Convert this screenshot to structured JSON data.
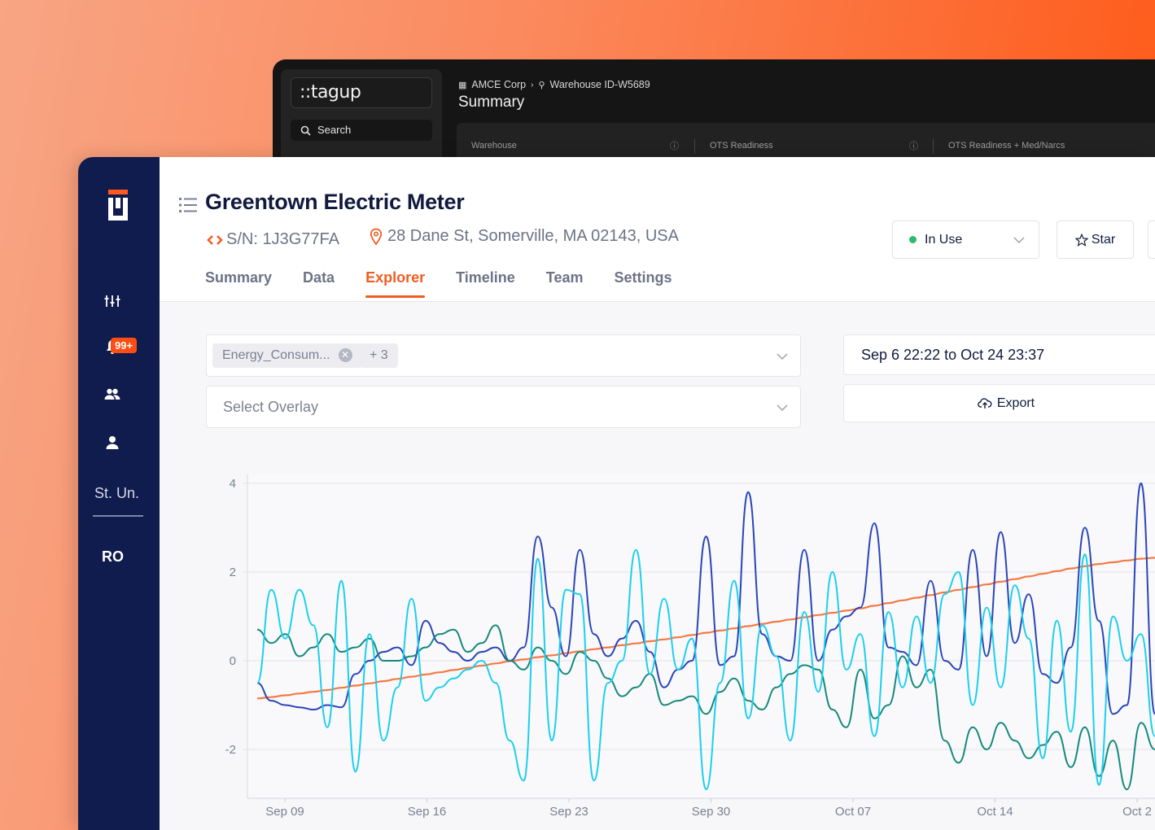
{
  "back_window": {
    "logo": "::tagup",
    "search_label": "Search",
    "breadcrumb": [
      "AMCE Corp",
      "Warehouse ID-W5689"
    ],
    "title": "Summary",
    "columns": [
      "Warehouse",
      "OTS Readiness",
      "OTS Readiness + Med/Narcs"
    ]
  },
  "sidebar": {
    "badge": "99+",
    "user_code": "St. Un.",
    "role_code": "RO"
  },
  "asset": {
    "title": "Greentown Electric Meter",
    "serial": "S/N: 1J3G77FA",
    "address": "28 Dane St, Somerville, MA 02143, USA",
    "status": "In Use",
    "star_label": "Star"
  },
  "tabs": [
    {
      "label": "Summary"
    },
    {
      "label": "Data"
    },
    {
      "label": "Explorer",
      "active": true
    },
    {
      "label": "Timeline"
    },
    {
      "label": "Team"
    },
    {
      "label": "Settings"
    }
  ],
  "controls": {
    "signal_chip": "Energy_Consum...",
    "more_chip": "+ 3",
    "overlay_placeholder": "Select Overlay",
    "date_range": "Sep 6 22:22 to Oct 24 23:37",
    "export_label": "Export"
  },
  "colors": {
    "accent": "#f25c21",
    "sidebar": "#101b4e",
    "status_green": "#2dba6c"
  },
  "chart_data": {
    "type": "line",
    "x_ticks": [
      "Sep 09",
      "Sep 16",
      "Sep 23",
      "Sep 30",
      "Oct 07",
      "Oct 14",
      "Oct 2"
    ],
    "y_ticks": [
      "4",
      "2",
      "0",
      "-2"
    ],
    "ylim": [
      -3.1,
      4.2
    ],
    "series": [
      {
        "color": "#f47a45",
        "values": [
          -0.85,
          -0.82,
          -0.78,
          -0.74,
          -0.7,
          -0.66,
          -0.61,
          -0.56,
          -0.51,
          -0.46,
          -0.41,
          -0.36,
          -0.31,
          -0.26,
          -0.21,
          -0.16,
          -0.11,
          -0.06,
          -0.01,
          0.03,
          0.08,
          0.12,
          0.17,
          0.21,
          0.26,
          0.3,
          0.35,
          0.39,
          0.44,
          0.48,
          0.53,
          0.58,
          0.63,
          0.68,
          0.73,
          0.78,
          0.83,
          0.88,
          0.93,
          0.98,
          1.03,
          1.08,
          1.13,
          1.18,
          1.24,
          1.3,
          1.36,
          1.42,
          1.48,
          1.54,
          1.6,
          1.66,
          1.72,
          1.78,
          1.84,
          1.9,
          1.96,
          2.02,
          2.08,
          2.13,
          2.18,
          2.22,
          2.26,
          2.3,
          2.32
        ]
      },
      {
        "color": "#2a45b8",
        "values": [
          -0.5,
          -0.9,
          -1.0,
          -1.05,
          -1.1,
          -1.0,
          -1.05,
          -0.3,
          0.0,
          0.2,
          0.3,
          -0.1,
          0.9,
          0.4,
          0.2,
          0.0,
          0.2,
          0.3,
          0.0,
          0.3,
          2.8,
          1.2,
          0.1,
          2.5,
          0.6,
          0.1,
          0.5,
          0.9,
          0.2,
          -0.6,
          -0.2,
          0.0,
          2.8,
          -0.1,
          0.1,
          3.8,
          0.6,
          0.1,
          0.0,
          2.5,
          0.0,
          0.7,
          1.0,
          1.2,
          3.1,
          0.3,
          0.2,
          -0.1,
          1.8,
          0.0,
          -0.2,
          2.5,
          0.1,
          2.9,
          0.4,
          1.5,
          -0.3,
          -0.5,
          0.3,
          3.0,
          0.9,
          -1.2,
          -1.0,
          4.0,
          -1.2
        ]
      },
      {
        "color": "#16897c",
        "values": [
          0.7,
          0.4,
          0.6,
          0.1,
          0.3,
          0.6,
          0.2,
          0.3,
          0.5,
          0.0,
          0.0,
          0.1,
          0.3,
          0.6,
          0.7,
          0.2,
          0.4,
          0.8,
          0.0,
          -0.2,
          0.3,
          0.0,
          -0.3,
          0.2,
          0.0,
          -0.4,
          -0.8,
          -0.6,
          -0.3,
          -1.0,
          -0.9,
          -0.8,
          -1.2,
          -0.7,
          -0.4,
          -0.9,
          -1.1,
          -0.6,
          -0.3,
          -0.1,
          -0.2,
          -1.1,
          -1.5,
          -0.2,
          -1.3,
          -1.0,
          0.1,
          -0.6,
          -0.2,
          -1.8,
          -2.3,
          -1.5,
          -2.0,
          -1.4,
          -1.8,
          -2.2,
          -1.9,
          -1.6,
          -2.4,
          -1.5,
          -2.6,
          -1.8,
          -2.9,
          -1.4,
          -2.0
        ]
      },
      {
        "color": "#1ccfee",
        "values": [
          -0.5,
          1.6,
          0.5,
          1.6,
          0.8,
          -1.5,
          1.8,
          -2.5,
          0.6,
          -1.8,
          -0.6,
          1.4,
          -0.9,
          -0.6,
          -0.4,
          -0.2,
          0.0,
          -0.5,
          -1.8,
          -2.7,
          2.3,
          -1.8,
          1.6,
          1.5,
          -2.7,
          -0.5,
          0.0,
          2.5,
          -0.3,
          1.4,
          -0.2,
          0.5,
          -2.9,
          -0.5,
          1.8,
          -1.3,
          0.8,
          0.1,
          -1.8,
          1.1,
          -0.7,
          2.0,
          -0.2,
          0.6,
          -1.7,
          1.1,
          -0.6,
          1.0,
          -0.5,
          1.5,
          2.0,
          -1.0,
          1.2,
          -0.6,
          1.7,
          0.5,
          -2.2,
          0.9,
          -1.6,
          2.4,
          -2.8,
          1.0,
          0.0,
          0.6,
          -1.7
        ]
      }
    ]
  }
}
